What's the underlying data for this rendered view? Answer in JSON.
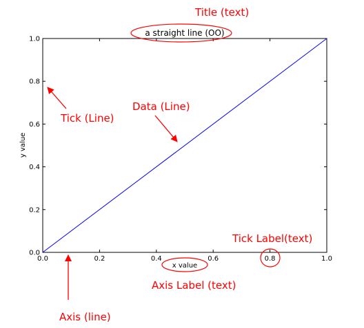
{
  "chart_data": {
    "type": "line",
    "title": "a straight line (OO)",
    "xlabel": "x value",
    "ylabel": "y value",
    "xlim": [
      0,
      1
    ],
    "ylim": [
      0,
      1
    ],
    "grid": false,
    "x_ticks": [
      "0.0",
      "0.2",
      "0.4",
      "0.6",
      "0.8",
      "1.0"
    ],
    "y_ticks": [
      "0.0",
      "0.2",
      "0.4",
      "0.6",
      "0.8",
      "1.0"
    ],
    "series": [
      {
        "x": [
          0,
          1
        ],
        "y": [
          0,
          1
        ],
        "color": "#0000ff"
      }
    ]
  },
  "annotations": {
    "color": "#ff0000",
    "title": "Title (text)",
    "data": "Data (Line)",
    "tick": "Tick (Line)",
    "tick_label": "Tick Label(text)",
    "axis_label": "Axis Label (text)",
    "axis": "Axis (line)"
  }
}
